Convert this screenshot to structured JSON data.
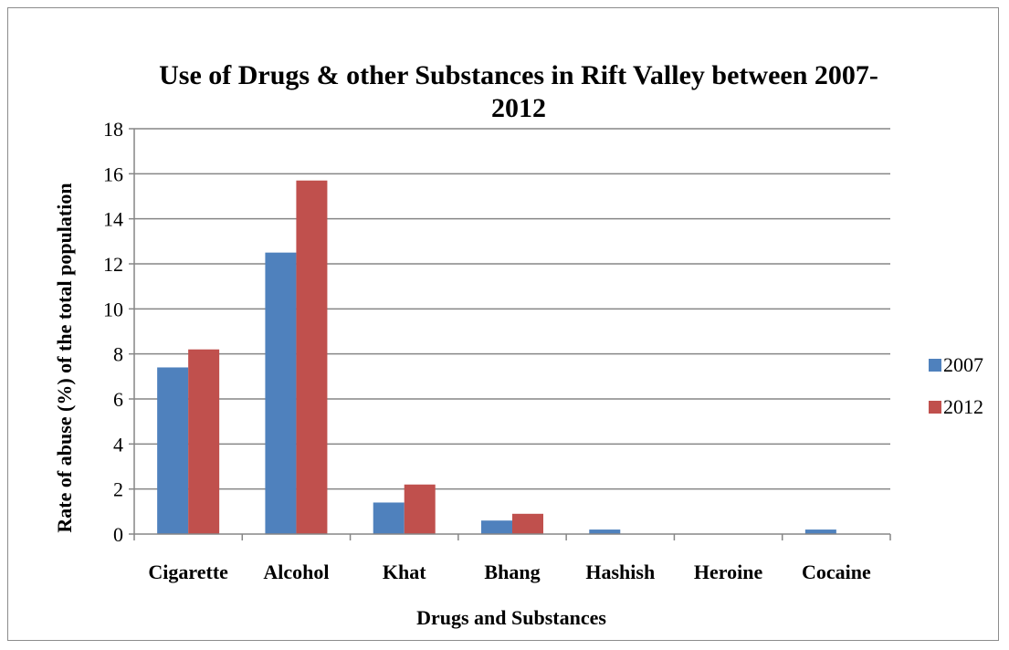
{
  "chart_data": {
    "type": "bar",
    "title_lines": [
      "Use of Drugs & other Substances in Rift Valley between 2007-",
      "2012"
    ],
    "xlabel": "Drugs and Substances",
    "ylabel": "Rate of abuse (%) of the total population",
    "categories": [
      "Cigarette",
      "Alcohol",
      "Khat",
      "Bhang",
      "Hashish",
      "Heroine",
      "Cocaine"
    ],
    "series": [
      {
        "name": "2007",
        "color": "#4f81bd",
        "values": [
          7.4,
          12.5,
          1.4,
          0.6,
          0.2,
          0,
          0.2
        ]
      },
      {
        "name": "2012",
        "color": "#c0504d",
        "values": [
          8.2,
          15.7,
          2.2,
          0.9,
          0,
          0,
          0
        ]
      }
    ],
    "ylim": [
      0,
      18
    ],
    "yticks": [
      "0",
      "2",
      "4",
      "6",
      "8",
      "10",
      "12",
      "14",
      "16",
      "18"
    ],
    "grid": true,
    "legend_position": "right"
  }
}
